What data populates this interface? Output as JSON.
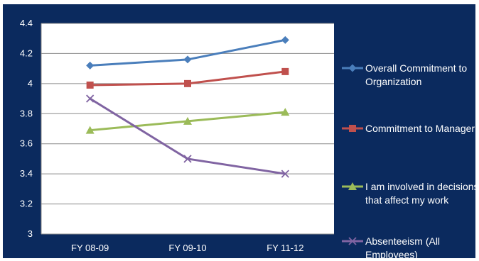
{
  "chart_data": {
    "type": "line",
    "categories": [
      "FY 08-09",
      "FY 09-10",
      "FY 11-12"
    ],
    "ylim": [
      3,
      4.4
    ],
    "yticks": [
      "3",
      "3.2",
      "3.4",
      "3.6",
      "3.8",
      "4",
      "4.2",
      "4.4"
    ],
    "grid": true,
    "legend_position": "right",
    "series": [
      {
        "name": "Overall Commitment to Organization",
        "legend_lines": [
          "Overall Commitment to",
          "Organization"
        ],
        "values": [
          4.12,
          4.16,
          4.29
        ],
        "color": "#4a7ebb",
        "marker": "diamond"
      },
      {
        "name": "Commitment to Manager",
        "legend_lines": [
          "Commitment to Manager"
        ],
        "values": [
          3.99,
          4.0,
          4.08
        ],
        "color": "#c0504d",
        "marker": "square"
      },
      {
        "name": "I am involved in decisions that affect my work",
        "legend_lines": [
          "I am involved in decisions",
          "that affect my work"
        ],
        "values": [
          3.69,
          3.75,
          3.81
        ],
        "color": "#9bbb59",
        "marker": "triangle"
      },
      {
        "name": "Absenteeism (All Employees)",
        "legend_lines": [
          "Absenteeism (All",
          "Employees)"
        ],
        "values": [
          3.9,
          3.5,
          3.4
        ],
        "color": "#8064a2",
        "marker": "x"
      }
    ]
  }
}
